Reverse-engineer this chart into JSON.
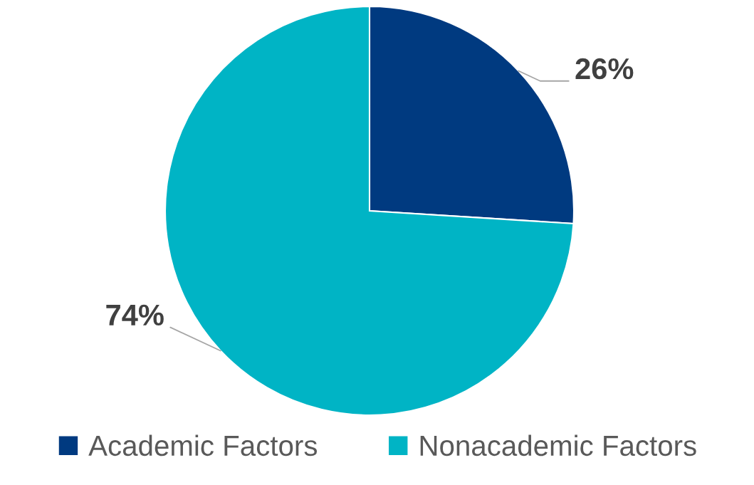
{
  "chart_data": {
    "type": "pie",
    "categories": [
      "Academic Factors",
      "Nonacademic Factors"
    ],
    "values": [
      26,
      74
    ],
    "colors": [
      "#003a80",
      "#00b4c5"
    ],
    "value_labels": [
      "26%",
      "74%"
    ],
    "legend": "bottom"
  }
}
